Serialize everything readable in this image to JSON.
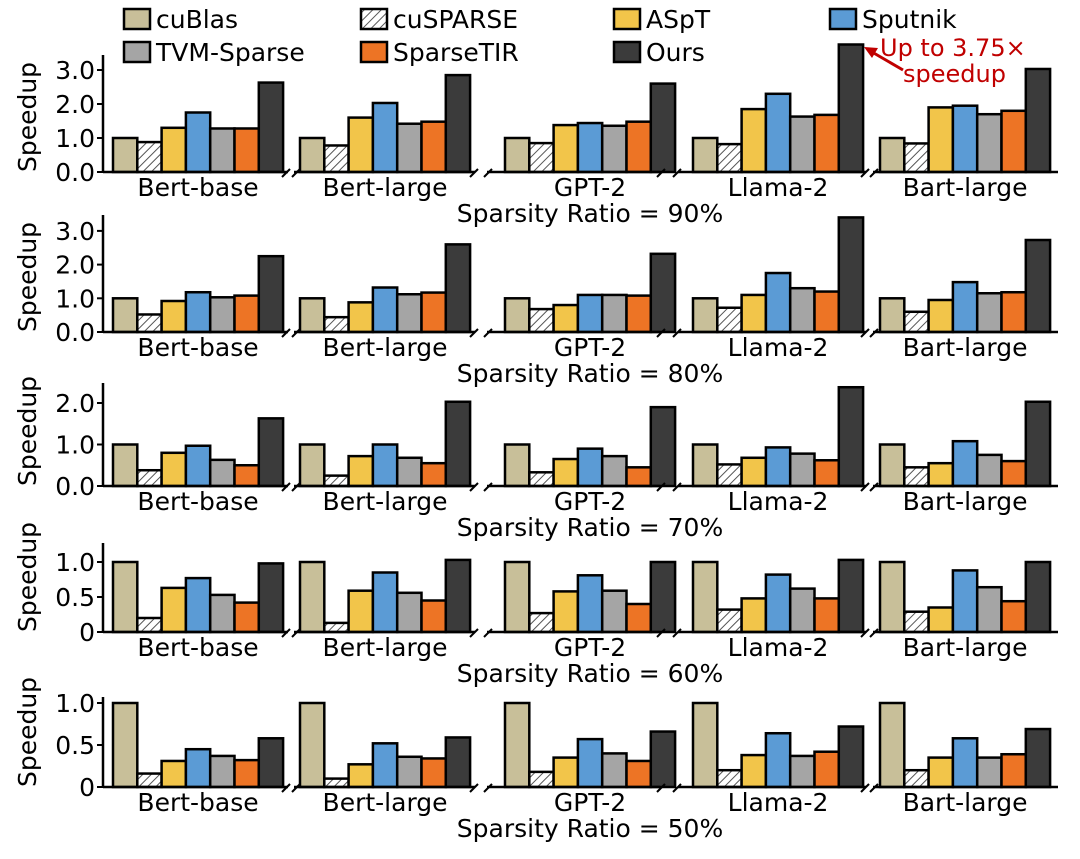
{
  "chart_data": [
    {
      "type": "bar",
      "title": "Sparsity Ratio = 90%",
      "xlabel": "",
      "ylabel": "Speedup",
      "ylim": [
        0,
        3.5
      ],
      "yticks": [
        0,
        1,
        2,
        3
      ],
      "ytick_labels": [
        "0.0",
        "1.0",
        "2.0",
        "3.0"
      ],
      "grid": false,
      "categories": [
        "Bert-base",
        "Bert-large",
        "GPT-2",
        "Llama-2",
        "Bart-large"
      ],
      "series": [
        {
          "name": "cuBlas",
          "values": [
            1.0,
            1.0,
            1.0,
            1.0,
            1.0
          ]
        },
        {
          "name": "cuSPARSE",
          "values": [
            0.88,
            0.78,
            0.85,
            0.82,
            0.84
          ]
        },
        {
          "name": "ASpT",
          "values": [
            1.3,
            1.6,
            1.38,
            1.85,
            1.9
          ]
        },
        {
          "name": "Sputnik",
          "values": [
            1.75,
            2.03,
            1.44,
            2.3,
            1.95
          ]
        },
        {
          "name": "TVM-Sparse",
          "values": [
            1.28,
            1.42,
            1.36,
            1.63,
            1.7
          ]
        },
        {
          "name": "SparseTIR",
          "values": [
            1.28,
            1.48,
            1.48,
            1.68,
            1.8
          ]
        },
        {
          "name": "Ours",
          "values": [
            2.63,
            2.85,
            2.6,
            3.75,
            3.03
          ]
        }
      ],
      "annotation": {
        "text_line1": "Up to 3.75×",
        "text_line2": "speedup",
        "target_category": "Llama-2",
        "target_series": "Ours"
      }
    },
    {
      "type": "bar",
      "title": "Sparsity Ratio = 80%",
      "xlabel": "",
      "ylabel": "Speedup",
      "ylim": [
        0,
        3.5
      ],
      "yticks": [
        0,
        1,
        2,
        3
      ],
      "ytick_labels": [
        "0.0",
        "1.0",
        "2.0",
        "3.0"
      ],
      "grid": false,
      "categories": [
        "Bert-base",
        "Bert-large",
        "GPT-2",
        "Llama-2",
        "Bart-large"
      ],
      "series": [
        {
          "name": "cuBlas",
          "values": [
            1.0,
            1.0,
            1.0,
            1.0,
            1.0
          ]
        },
        {
          "name": "cuSPARSE",
          "values": [
            0.52,
            0.44,
            0.68,
            0.72,
            0.6
          ]
        },
        {
          "name": "ASpT",
          "values": [
            0.92,
            0.88,
            0.8,
            1.1,
            0.95
          ]
        },
        {
          "name": "Sputnik",
          "values": [
            1.18,
            1.32,
            1.1,
            1.75,
            1.48
          ]
        },
        {
          "name": "TVM-Sparse",
          "values": [
            1.03,
            1.12,
            1.1,
            1.3,
            1.15
          ]
        },
        {
          "name": "SparseTIR",
          "values": [
            1.08,
            1.17,
            1.08,
            1.2,
            1.18
          ]
        },
        {
          "name": "Ours",
          "values": [
            2.25,
            2.6,
            2.32,
            3.4,
            2.73
          ]
        }
      ]
    },
    {
      "type": "bar",
      "title": "Sparsity Ratio = 70%",
      "xlabel": "",
      "ylabel": "Speedup",
      "ylim": [
        0,
        2.4
      ],
      "yticks": [
        0,
        1,
        2
      ],
      "ytick_labels": [
        "0.0",
        "1.0",
        "2.0"
      ],
      "grid": false,
      "categories": [
        "Bert-base",
        "Bert-large",
        "GPT-2",
        "Llama-2",
        "Bart-large"
      ],
      "series": [
        {
          "name": "cuBlas",
          "values": [
            1.0,
            1.0,
            1.0,
            1.0,
            1.0
          ]
        },
        {
          "name": "cuSPARSE",
          "values": [
            0.38,
            0.25,
            0.33,
            0.52,
            0.45
          ]
        },
        {
          "name": "ASpT",
          "values": [
            0.8,
            0.72,
            0.65,
            0.68,
            0.55
          ]
        },
        {
          "name": "Sputnik",
          "values": [
            0.97,
            1.0,
            0.9,
            0.93,
            1.08
          ]
        },
        {
          "name": "TVM-Sparse",
          "values": [
            0.63,
            0.68,
            0.72,
            0.78,
            0.75
          ]
        },
        {
          "name": "SparseTIR",
          "values": [
            0.5,
            0.55,
            0.45,
            0.62,
            0.6
          ]
        },
        {
          "name": "Ours",
          "values": [
            1.63,
            2.03,
            1.9,
            2.38,
            2.03
          ]
        }
      ]
    },
    {
      "type": "bar",
      "title": "Sparsity Ratio = 60%",
      "xlabel": "",
      "ylabel": "Speedup",
      "ylim": [
        0,
        1.25
      ],
      "yticks": [
        0,
        0.5,
        1.0
      ],
      "ytick_labels": [
        "0",
        "0.5",
        "1.0"
      ],
      "grid": false,
      "categories": [
        "Bert-base",
        "Bert-large",
        "GPT-2",
        "Llama-2",
        "Bart-large"
      ],
      "series": [
        {
          "name": "cuBlas",
          "values": [
            1.0,
            1.0,
            1.0,
            1.0,
            1.0
          ]
        },
        {
          "name": "cuSPARSE",
          "values": [
            0.2,
            0.13,
            0.27,
            0.32,
            0.29
          ]
        },
        {
          "name": "ASpT",
          "values": [
            0.63,
            0.59,
            0.58,
            0.48,
            0.35
          ]
        },
        {
          "name": "Sputnik",
          "values": [
            0.77,
            0.85,
            0.81,
            0.82,
            0.88
          ]
        },
        {
          "name": "TVM-Sparse",
          "values": [
            0.53,
            0.56,
            0.59,
            0.62,
            0.64
          ]
        },
        {
          "name": "SparseTIR",
          "values": [
            0.42,
            0.45,
            0.4,
            0.48,
            0.44
          ]
        },
        {
          "name": "Ours",
          "values": [
            0.98,
            1.03,
            1.0,
            1.03,
            1.0
          ]
        }
      ]
    },
    {
      "type": "bar",
      "title": "Sparsity Ratio = 50%",
      "xlabel": "",
      "ylabel": "Speedup",
      "ylim": [
        0,
        1.05
      ],
      "yticks": [
        0,
        0.5,
        1.0
      ],
      "ytick_labels": [
        "0",
        "0.5",
        "1.0"
      ],
      "grid": false,
      "categories": [
        "Bert-base",
        "Bert-large",
        "GPT-2",
        "Llama-2",
        "Bart-large"
      ],
      "series": [
        {
          "name": "cuBlas",
          "values": [
            1.0,
            1.0,
            1.0,
            1.0,
            1.0
          ]
        },
        {
          "name": "cuSPARSE",
          "values": [
            0.16,
            0.1,
            0.18,
            0.2,
            0.2
          ]
        },
        {
          "name": "ASpT",
          "values": [
            0.31,
            0.27,
            0.35,
            0.38,
            0.35
          ]
        },
        {
          "name": "Sputnik",
          "values": [
            0.45,
            0.52,
            0.57,
            0.64,
            0.58
          ]
        },
        {
          "name": "TVM-Sparse",
          "values": [
            0.37,
            0.36,
            0.4,
            0.37,
            0.35
          ]
        },
        {
          "name": "SparseTIR",
          "values": [
            0.32,
            0.34,
            0.31,
            0.42,
            0.39
          ]
        },
        {
          "name": "Ours",
          "values": [
            0.58,
            0.59,
            0.66,
            0.72,
            0.69
          ]
        }
      ]
    }
  ],
  "legend": {
    "placement": "top",
    "entries": [
      {
        "name": "cuBlas",
        "color": "#c8bf99",
        "pattern": "solid"
      },
      {
        "name": "cuSPARSE",
        "color": "#ffffff",
        "pattern": "hatch"
      },
      {
        "name": "ASpT",
        "color": "#f2c54a",
        "pattern": "solid"
      },
      {
        "name": "Sputnik",
        "color": "#5b9bd5",
        "pattern": "solid"
      },
      {
        "name": "TVM-Sparse",
        "color": "#a5a5a5",
        "pattern": "solid"
      },
      {
        "name": "SparseTIR",
        "color": "#ed7425",
        "pattern": "solid"
      },
      {
        "name": "Ours",
        "color": "#3b3b3b",
        "pattern": "solid"
      }
    ]
  },
  "colors": {
    "axis": "#000000",
    "annotation": "#c00000",
    "hatch": "#555555"
  }
}
